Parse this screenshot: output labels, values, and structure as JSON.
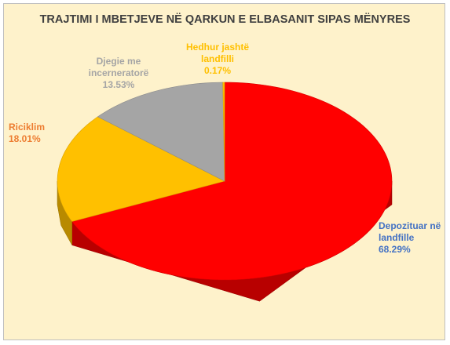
{
  "chart_data": {
    "type": "pie",
    "title": "TRAJTIMI I MBETJEVE NË QARKUN E ELBASANIT SIPAS MËNYRES",
    "categories": [
      "Depozituar në landfille",
      "Riciklim",
      "Djegie me incerneratorë",
      "Hedhur jashtë landfilli"
    ],
    "values": [
      68.29,
      18.01,
      13.53,
      0.17
    ],
    "value_labels": [
      "68.29%",
      "18.01%",
      "13.53%",
      "0.17%"
    ],
    "colors": [
      "#ff0000",
      "#ffc000",
      "#a5a5a5",
      "#ffc000"
    ],
    "label_colors": [
      "#4472c4",
      "#ed7d31",
      "#a5a5a5",
      "#ffc000"
    ]
  }
}
